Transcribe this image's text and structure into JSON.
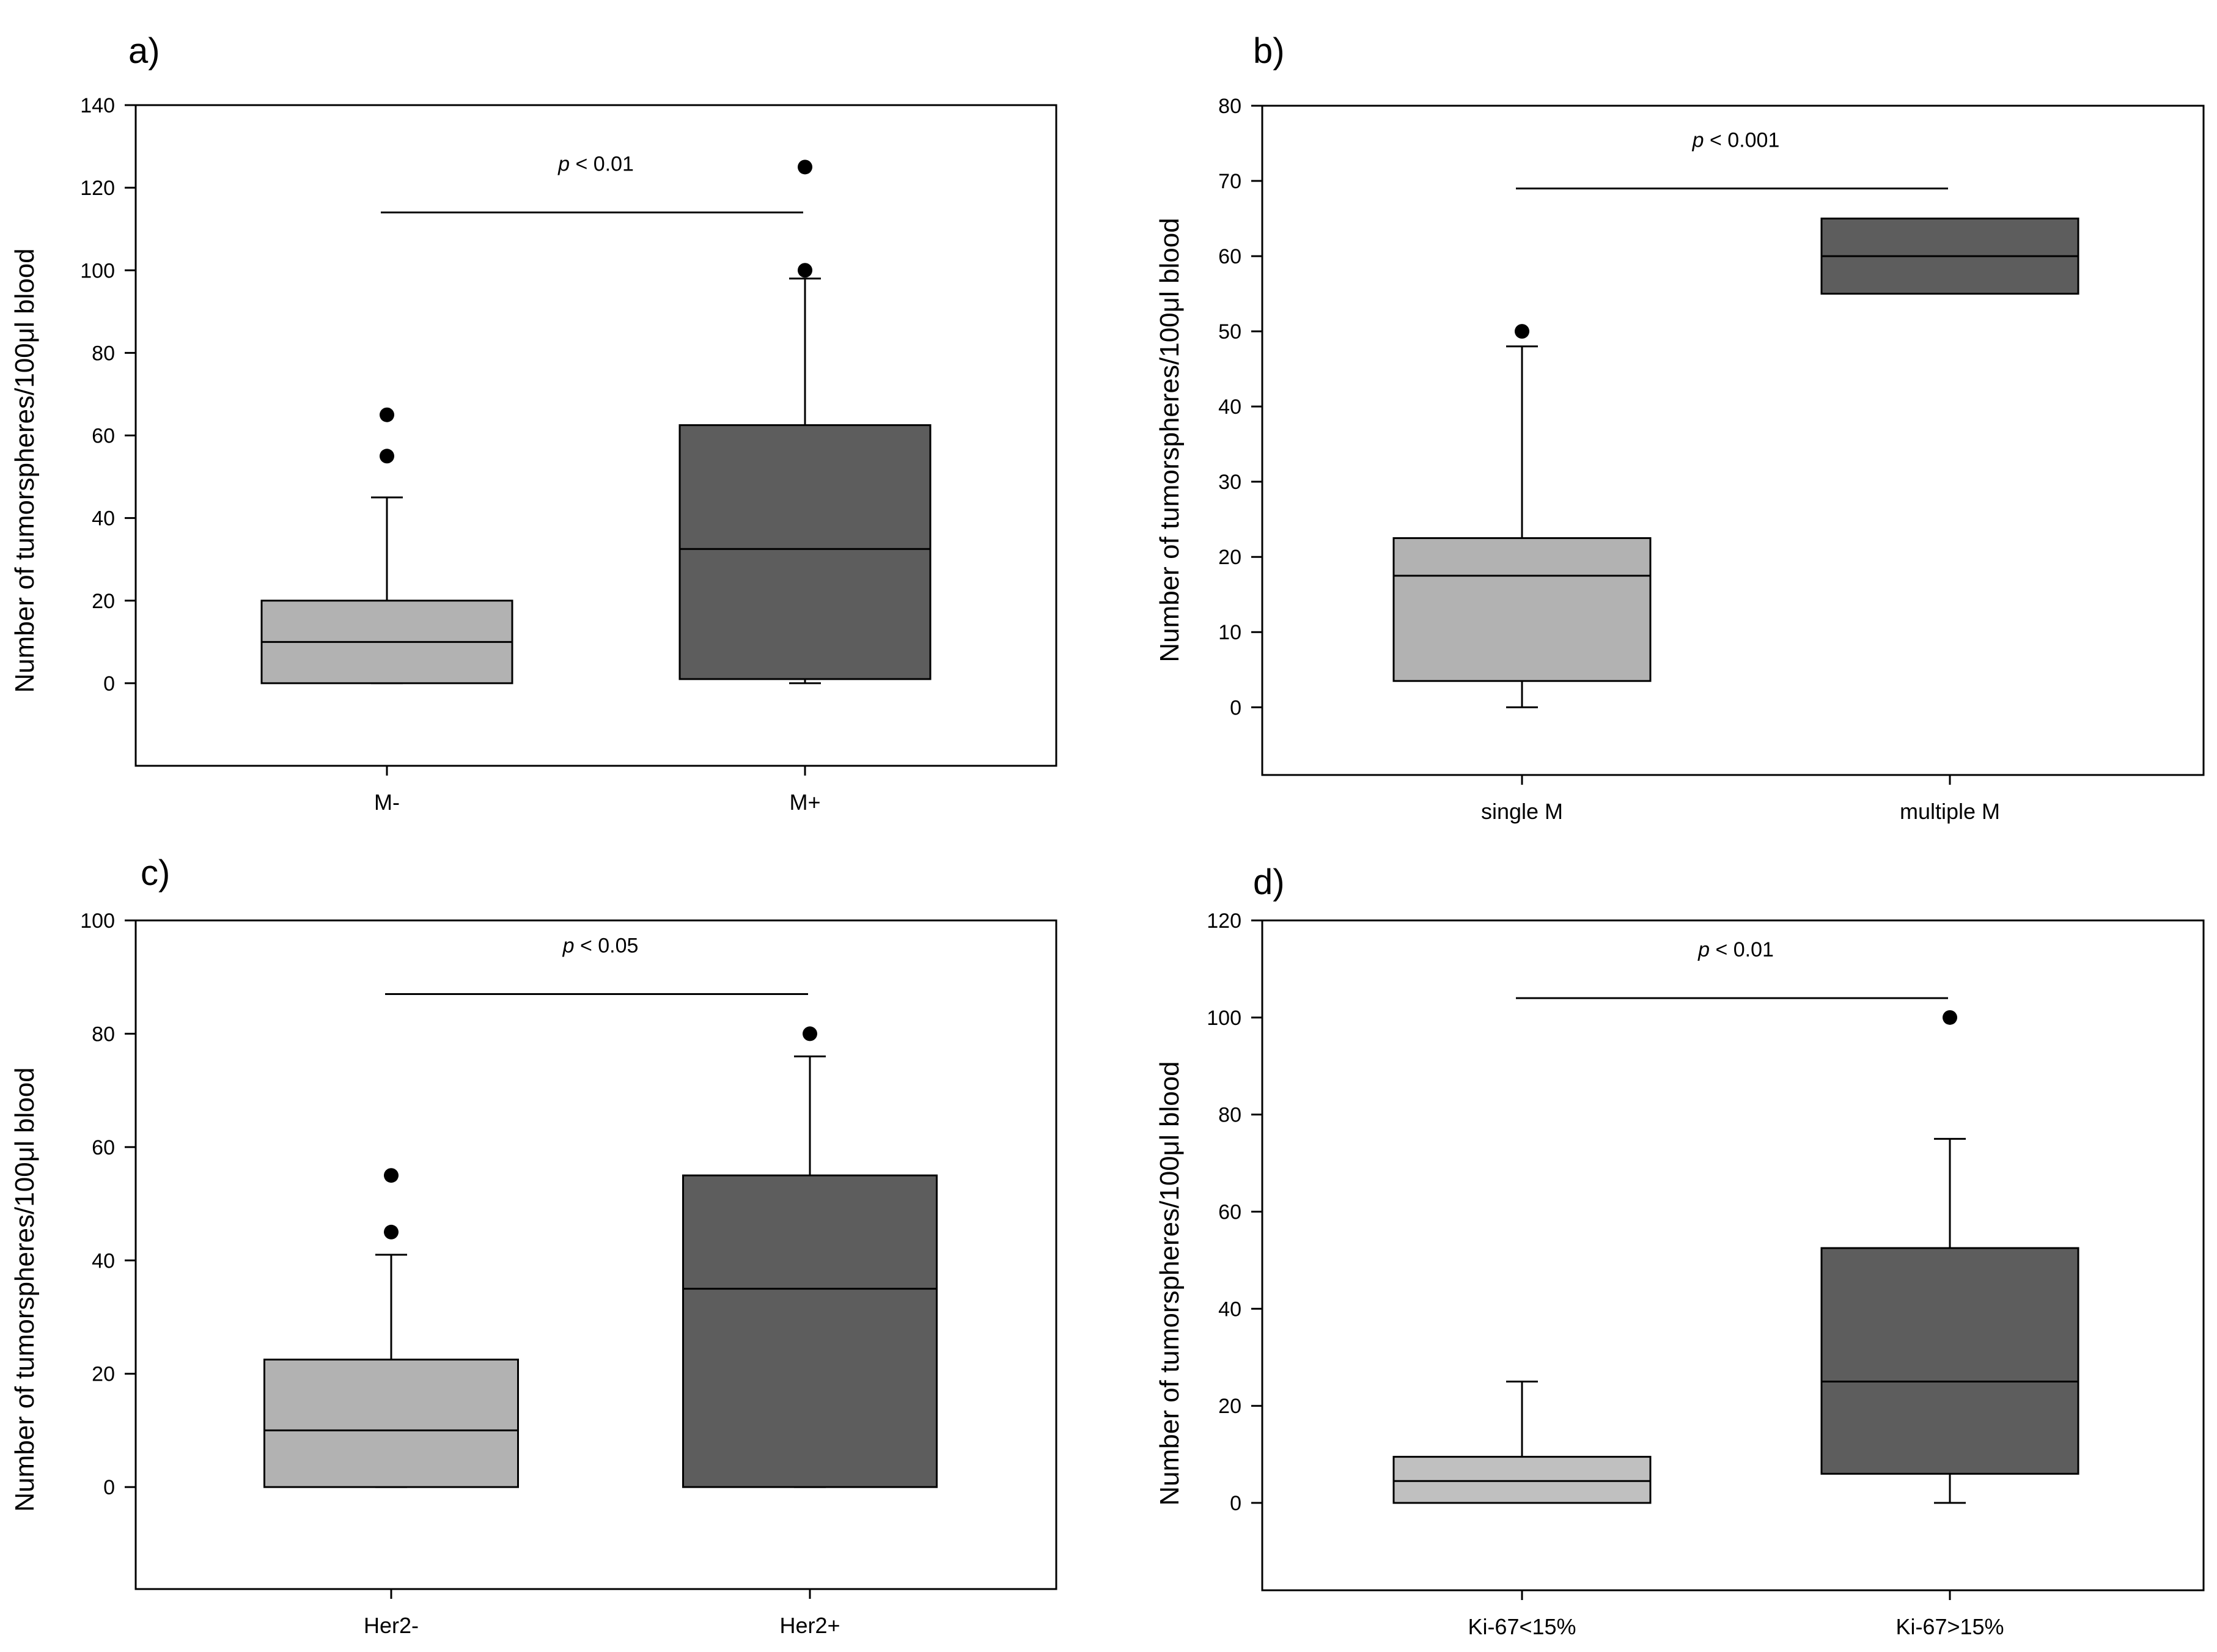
{
  "chart_data": [
    {
      "type": "box",
      "panel_label": "a)",
      "ylabel": "Number of tumorspheres/100μl blood",
      "xlabel": "",
      "ylim": [
        -20,
        140
      ],
      "yticks": [
        0,
        20,
        40,
        60,
        80,
        100,
        120,
        140
      ],
      "pvalue": {
        "p": "p",
        "rest": " < 0.01"
      },
      "bracket_y": 114,
      "boxes": [
        {
          "category": "M-",
          "color": "#b2b2b2",
          "whisker_low": 0,
          "q1": 0,
          "median": 10,
          "q3": 20,
          "whisker_high": 45,
          "outliers": [
            55,
            65
          ]
        },
        {
          "category": "M+",
          "color": "#5d5d5d",
          "whisker_low": 0,
          "q1": 1,
          "median": 32.5,
          "q3": 62.5,
          "whisker_high": 98,
          "outliers": [
            100,
            125
          ]
        }
      ]
    },
    {
      "type": "box",
      "panel_label": "b)",
      "ylabel": "Number of tumorspheres/100μl blood",
      "xlabel": "",
      "ylim": [
        -9,
        80
      ],
      "yticks": [
        0,
        10,
        20,
        30,
        40,
        50,
        60,
        70,
        80
      ],
      "pvalue": {
        "p": "p",
        "rest": " < 0.001"
      },
      "bracket_y": 69,
      "boxes": [
        {
          "category": "single M",
          "color": "#b2b2b2",
          "whisker_low": 0,
          "q1": 3.5,
          "median": 17.5,
          "q3": 22.5,
          "whisker_high": 48,
          "outliers": [
            50
          ]
        },
        {
          "category": "multiple M",
          "color": "#5d5d5d",
          "whisker_low": null,
          "q1": 55,
          "median": 60,
          "q3": 65,
          "whisker_high": null,
          "outliers": []
        }
      ]
    },
    {
      "type": "box",
      "panel_label": "c)",
      "ylabel": "Number of tumorspheres/100μl blood",
      "xlabel": "",
      "ylim": [
        -18,
        100
      ],
      "yticks": [
        0,
        20,
        40,
        60,
        80,
        100
      ],
      "pvalue": {
        "p": "p",
        "rest": " < 0.05"
      },
      "bracket_y": 87,
      "boxes": [
        {
          "category": "Her2-",
          "color": "#b2b2b2",
          "whisker_low": 0,
          "q1": 0,
          "median": 10,
          "q3": 22.5,
          "whisker_high": 41,
          "outliers": [
            45,
            55
          ]
        },
        {
          "category": "Her2+",
          "color": "#5d5d5d",
          "whisker_low": 0,
          "q1": 0,
          "median": 35,
          "q3": 55,
          "whisker_high": 76,
          "outliers": [
            80
          ]
        }
      ]
    },
    {
      "type": "box",
      "panel_label": "d)",
      "ylabel": "Number of tumorspheres/100μl blood",
      "xlabel": "",
      "ylim": [
        -18,
        120
      ],
      "yticks": [
        0,
        20,
        40,
        60,
        80,
        100,
        120
      ],
      "pvalue": {
        "p": "p",
        "rest": " < 0.01"
      },
      "bracket_y": 104,
      "boxes": [
        {
          "category": "Ki-67<15%",
          "color": "#c0c0c0",
          "whisker_low": 0,
          "q1": 0,
          "median": 4.5,
          "q3": 9.5,
          "whisker_high": 25,
          "outliers": []
        },
        {
          "category": "Ki-67>15%",
          "color": "#5d5d5d",
          "whisker_low": 0,
          "q1": 6,
          "median": 25,
          "q3": 52.5,
          "whisker_high": 75,
          "outliers": [
            100
          ]
        }
      ]
    }
  ]
}
